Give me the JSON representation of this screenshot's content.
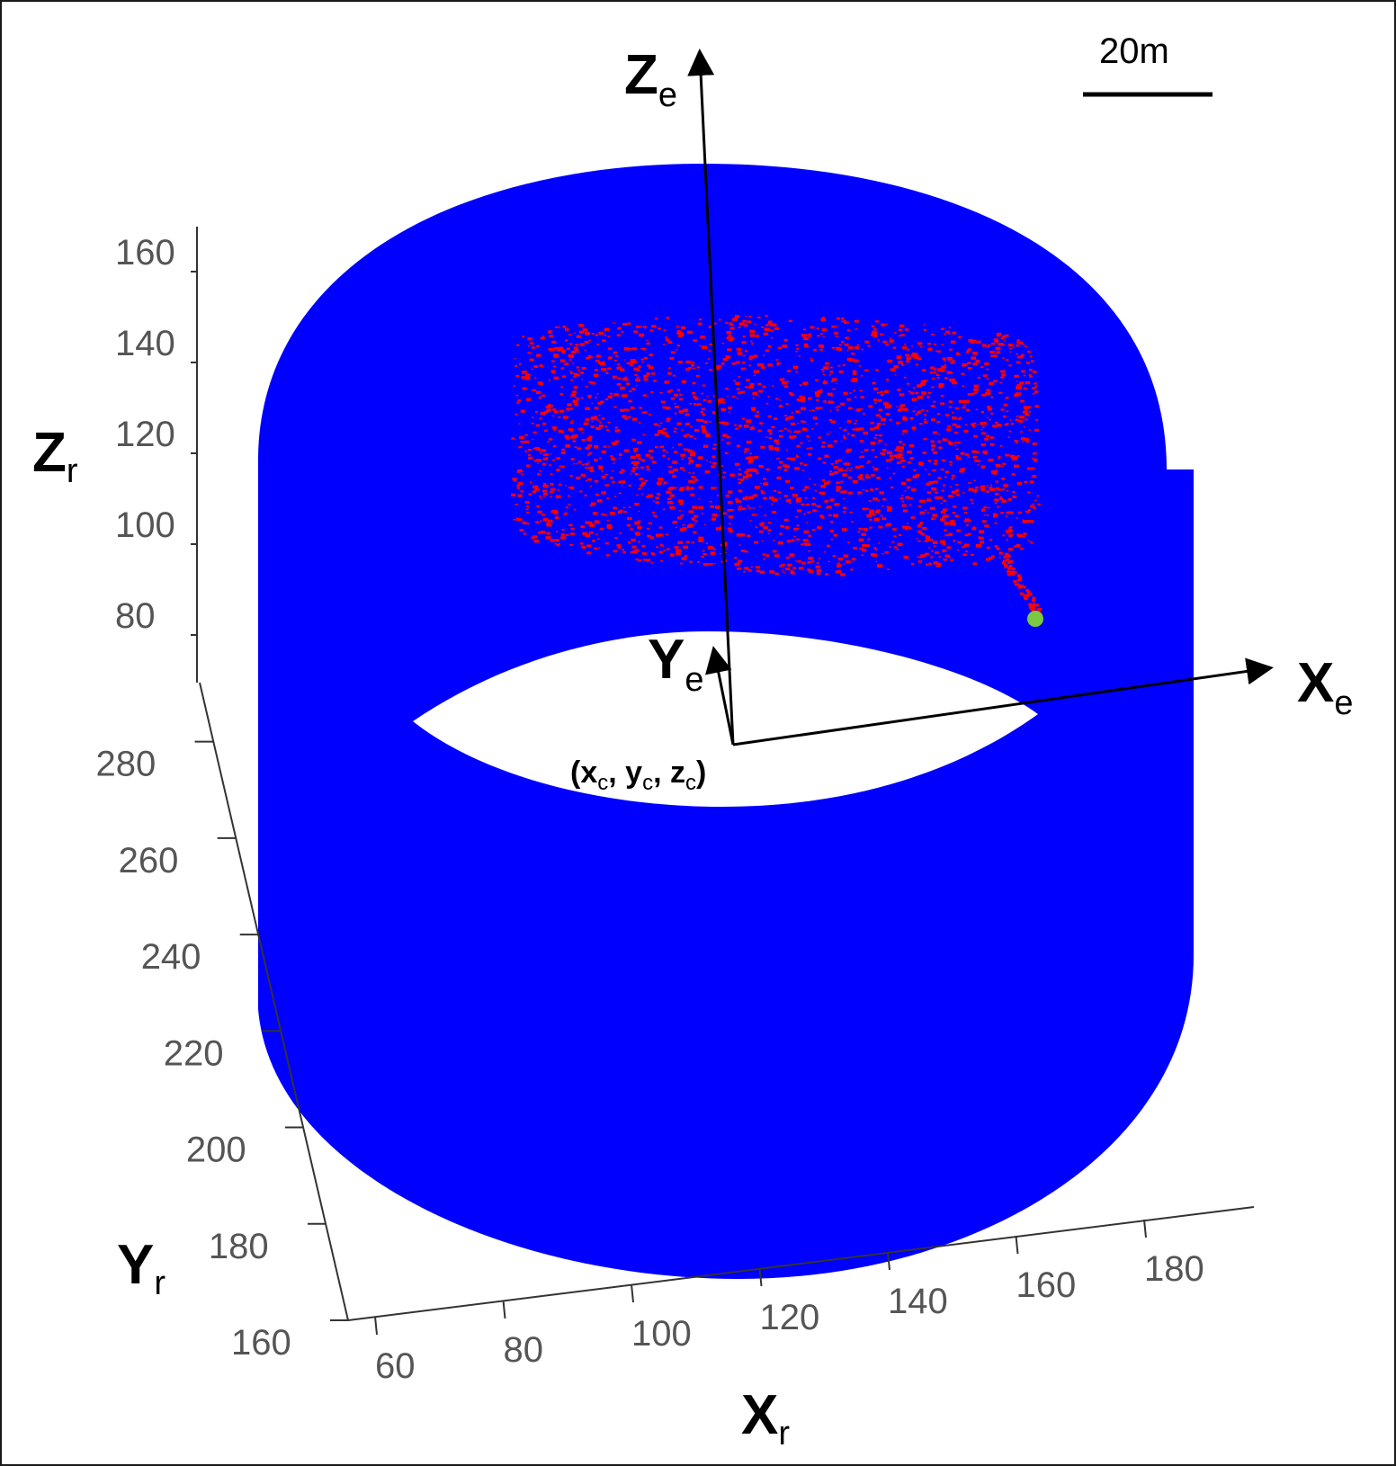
{
  "chart_data": {
    "type": "scatter",
    "projection": "3d",
    "title": "",
    "axes": {
      "x": {
        "label": "X",
        "label_sub": "r",
        "ticks": [
          "60",
          "80",
          "100",
          "120",
          "140",
          "160",
          "180"
        ]
      },
      "y": {
        "label": "Y",
        "label_sub": "r",
        "ticks": [
          "160",
          "180",
          "200",
          "220",
          "240",
          "260",
          "280"
        ]
      },
      "z": {
        "label": "Z",
        "label_sub": "r",
        "ticks": [
          "80",
          "100",
          "120",
          "140",
          "160"
        ]
      }
    },
    "series": [
      {
        "description_kind": "cylindrical point cloud",
        "color": "#0000ff",
        "x_range": [
          60,
          190
        ],
        "y_range": [
          160,
          290
        ],
        "z_range": [
          60,
          160
        ]
      },
      {
        "description_kind": "surface patch points",
        "color": "#ff0000",
        "x_range": [
          90,
          170
        ],
        "z_range": [
          100,
          140
        ]
      },
      {
        "description_kind": "single point",
        "color": "#7ac943",
        "x": 170,
        "z": 85
      }
    ],
    "local_frame": {
      "axes": [
        {
          "label": "X",
          "label_sub": "e"
        },
        {
          "label": "Y",
          "label_sub": "e"
        },
        {
          "label": "Z",
          "label_sub": "e"
        }
      ],
      "origin_label": {
        "open": "(",
        "parts": [
          {
            "t": "x",
            "s": "c"
          },
          {
            "t": "y",
            "s": "c"
          },
          {
            "t": "z",
            "s": "c"
          }
        ],
        "close": ")"
      }
    },
    "scale_bar": {
      "label": "20m",
      "length_m": 20
    },
    "grid": false,
    "legend": "none"
  }
}
